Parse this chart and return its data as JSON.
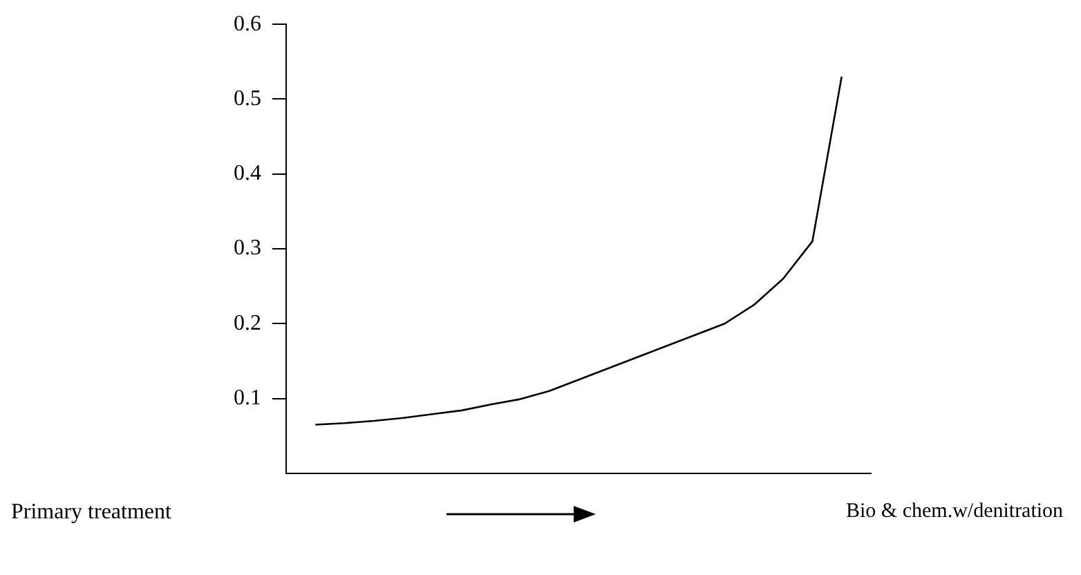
{
  "chart_data": {
    "type": "line",
    "categories": [
      null,
      null,
      null,
      null,
      null,
      null,
      null,
      null,
      null,
      null,
      null,
      null,
      null,
      null,
      null,
      null,
      null,
      null,
      null,
      null,
      null
    ],
    "series": [
      {
        "color": "#000000",
        "values": [
          null,
          0.065,
          0.067,
          0.07,
          0.074,
          0.079,
          0.084,
          0.092,
          0.099,
          0.11,
          0.125,
          0.14,
          0.155,
          0.17,
          0.185,
          0.2,
          0.225,
          0.26,
          0.31,
          0.53,
          null
        ]
      }
    ],
    "ylim": [
      0,
      0.6
    ],
    "yticks": [
      0.1,
      0.2,
      0.3,
      0.4,
      0.5,
      0.6
    ],
    "grid": false,
    "legend": false,
    "marker": "none",
    "line_style": "solid",
    "tick_labels": "y",
    "annotations": [
      "Primary treatment",
      "Bio & chem.w/denitration"
    ]
  }
}
